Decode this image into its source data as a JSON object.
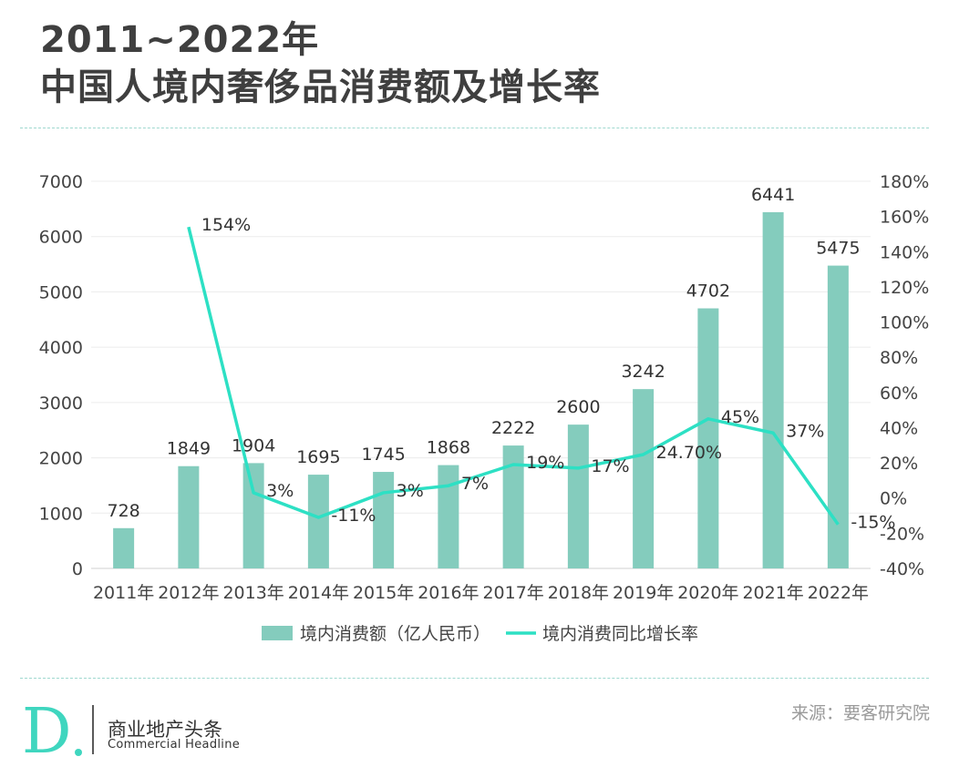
{
  "title_line1": "2011~2022年",
  "title_line2": "中国人境内奢侈品消费额及增长率",
  "source": "来源：要客研究院",
  "brand": {
    "name_cn": "商业地产头条",
    "name_en": "Commercial Headline",
    "logo_letter": "D"
  },
  "colors": {
    "bar": "#84ccbd",
    "line": "#2de0c4",
    "title": "#3f3f3f",
    "axis_text": "#444444"
  },
  "chart_data": {
    "type": "bar+line",
    "categories": [
      "2011年",
      "2012年",
      "2013年",
      "2014年",
      "2015年",
      "2016年",
      "2017年",
      "2018年",
      "2019年",
      "2020年",
      "2021年",
      "2022年"
    ],
    "series": [
      {
        "name": "境内消费额（亿人民币）",
        "type": "bar",
        "axis": "left",
        "values": [
          728,
          1849,
          1904,
          1695,
          1745,
          1868,
          2222,
          2600,
          3242,
          4702,
          6441,
          5475
        ],
        "labels": [
          "728",
          "1849",
          "1904",
          "1695",
          "1745",
          "1868",
          "2222",
          "2600",
          "3242",
          "4702",
          "6441",
          "5475"
        ]
      },
      {
        "name": "境内消费同比增长率",
        "type": "line",
        "axis": "right",
        "values": [
          null,
          154,
          3,
          -11,
          3,
          7,
          19,
          17,
          24.7,
          45,
          37,
          -15
        ],
        "labels": [
          "",
          "154%",
          "3%",
          "-11%",
          "3%",
          "7%",
          "19%",
          "17%",
          "24.70%",
          "45%",
          "37%",
          "-15%"
        ]
      }
    ],
    "y_left": {
      "min": 0,
      "max": 7000,
      "ticks": [
        "0",
        "1000",
        "2000",
        "3000",
        "4000",
        "5000",
        "6000",
        "7000"
      ]
    },
    "y_right": {
      "min": -40,
      "max": 180,
      "ticks": [
        "-40%",
        "-20%",
        "0%",
        "20%",
        "40%",
        "60%",
        "80%",
        "100%",
        "120%",
        "140%",
        "160%",
        "180%"
      ]
    },
    "grid": true,
    "legend": "bottom"
  }
}
